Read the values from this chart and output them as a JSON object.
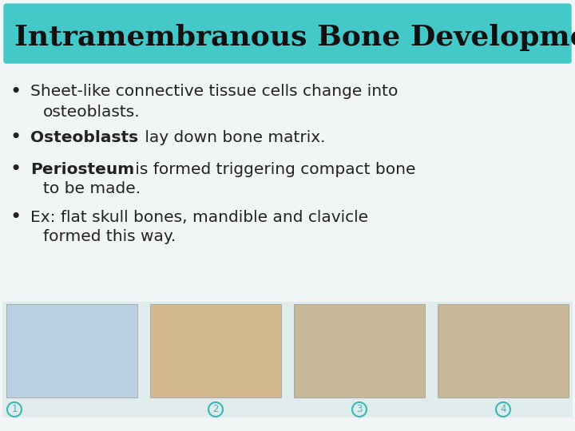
{
  "title": "Intramembranous Bone Development",
  "title_bg_color": "#45C8C8",
  "title_text_color": "#111111",
  "slide_bg_color": "#f2f5f5",
  "bullet_color": "#222222",
  "bullet_items": [
    {
      "bold_text": "",
      "normal_text": "Sheet-like connective tissue cells change into\n    osteoblasts.",
      "has_bold": false
    },
    {
      "bold_text": "Osteoblasts",
      "normal_text": " lay down bone matrix.",
      "has_bold": true
    },
    {
      "bold_text": "Periosteum",
      "normal_text": " is formed triggering compact bone\n    to be made.",
      "has_bold": true
    },
    {
      "bold_text": "",
      "normal_text": "Ex: flat skull bones, mandible and clavicle\n    formed this way.",
      "has_bold": false
    }
  ],
  "title_fontsize": 26,
  "bullet_fontsize": 14.5,
  "num_labels": [
    "1",
    "2",
    "3",
    "4"
  ],
  "num_label_color": "#3ab8b8",
  "image_bg_color": "#e0ecec",
  "img_colors": [
    "#b8d0e0",
    "#d4b890",
    "#c8b898",
    "#c8b898"
  ]
}
